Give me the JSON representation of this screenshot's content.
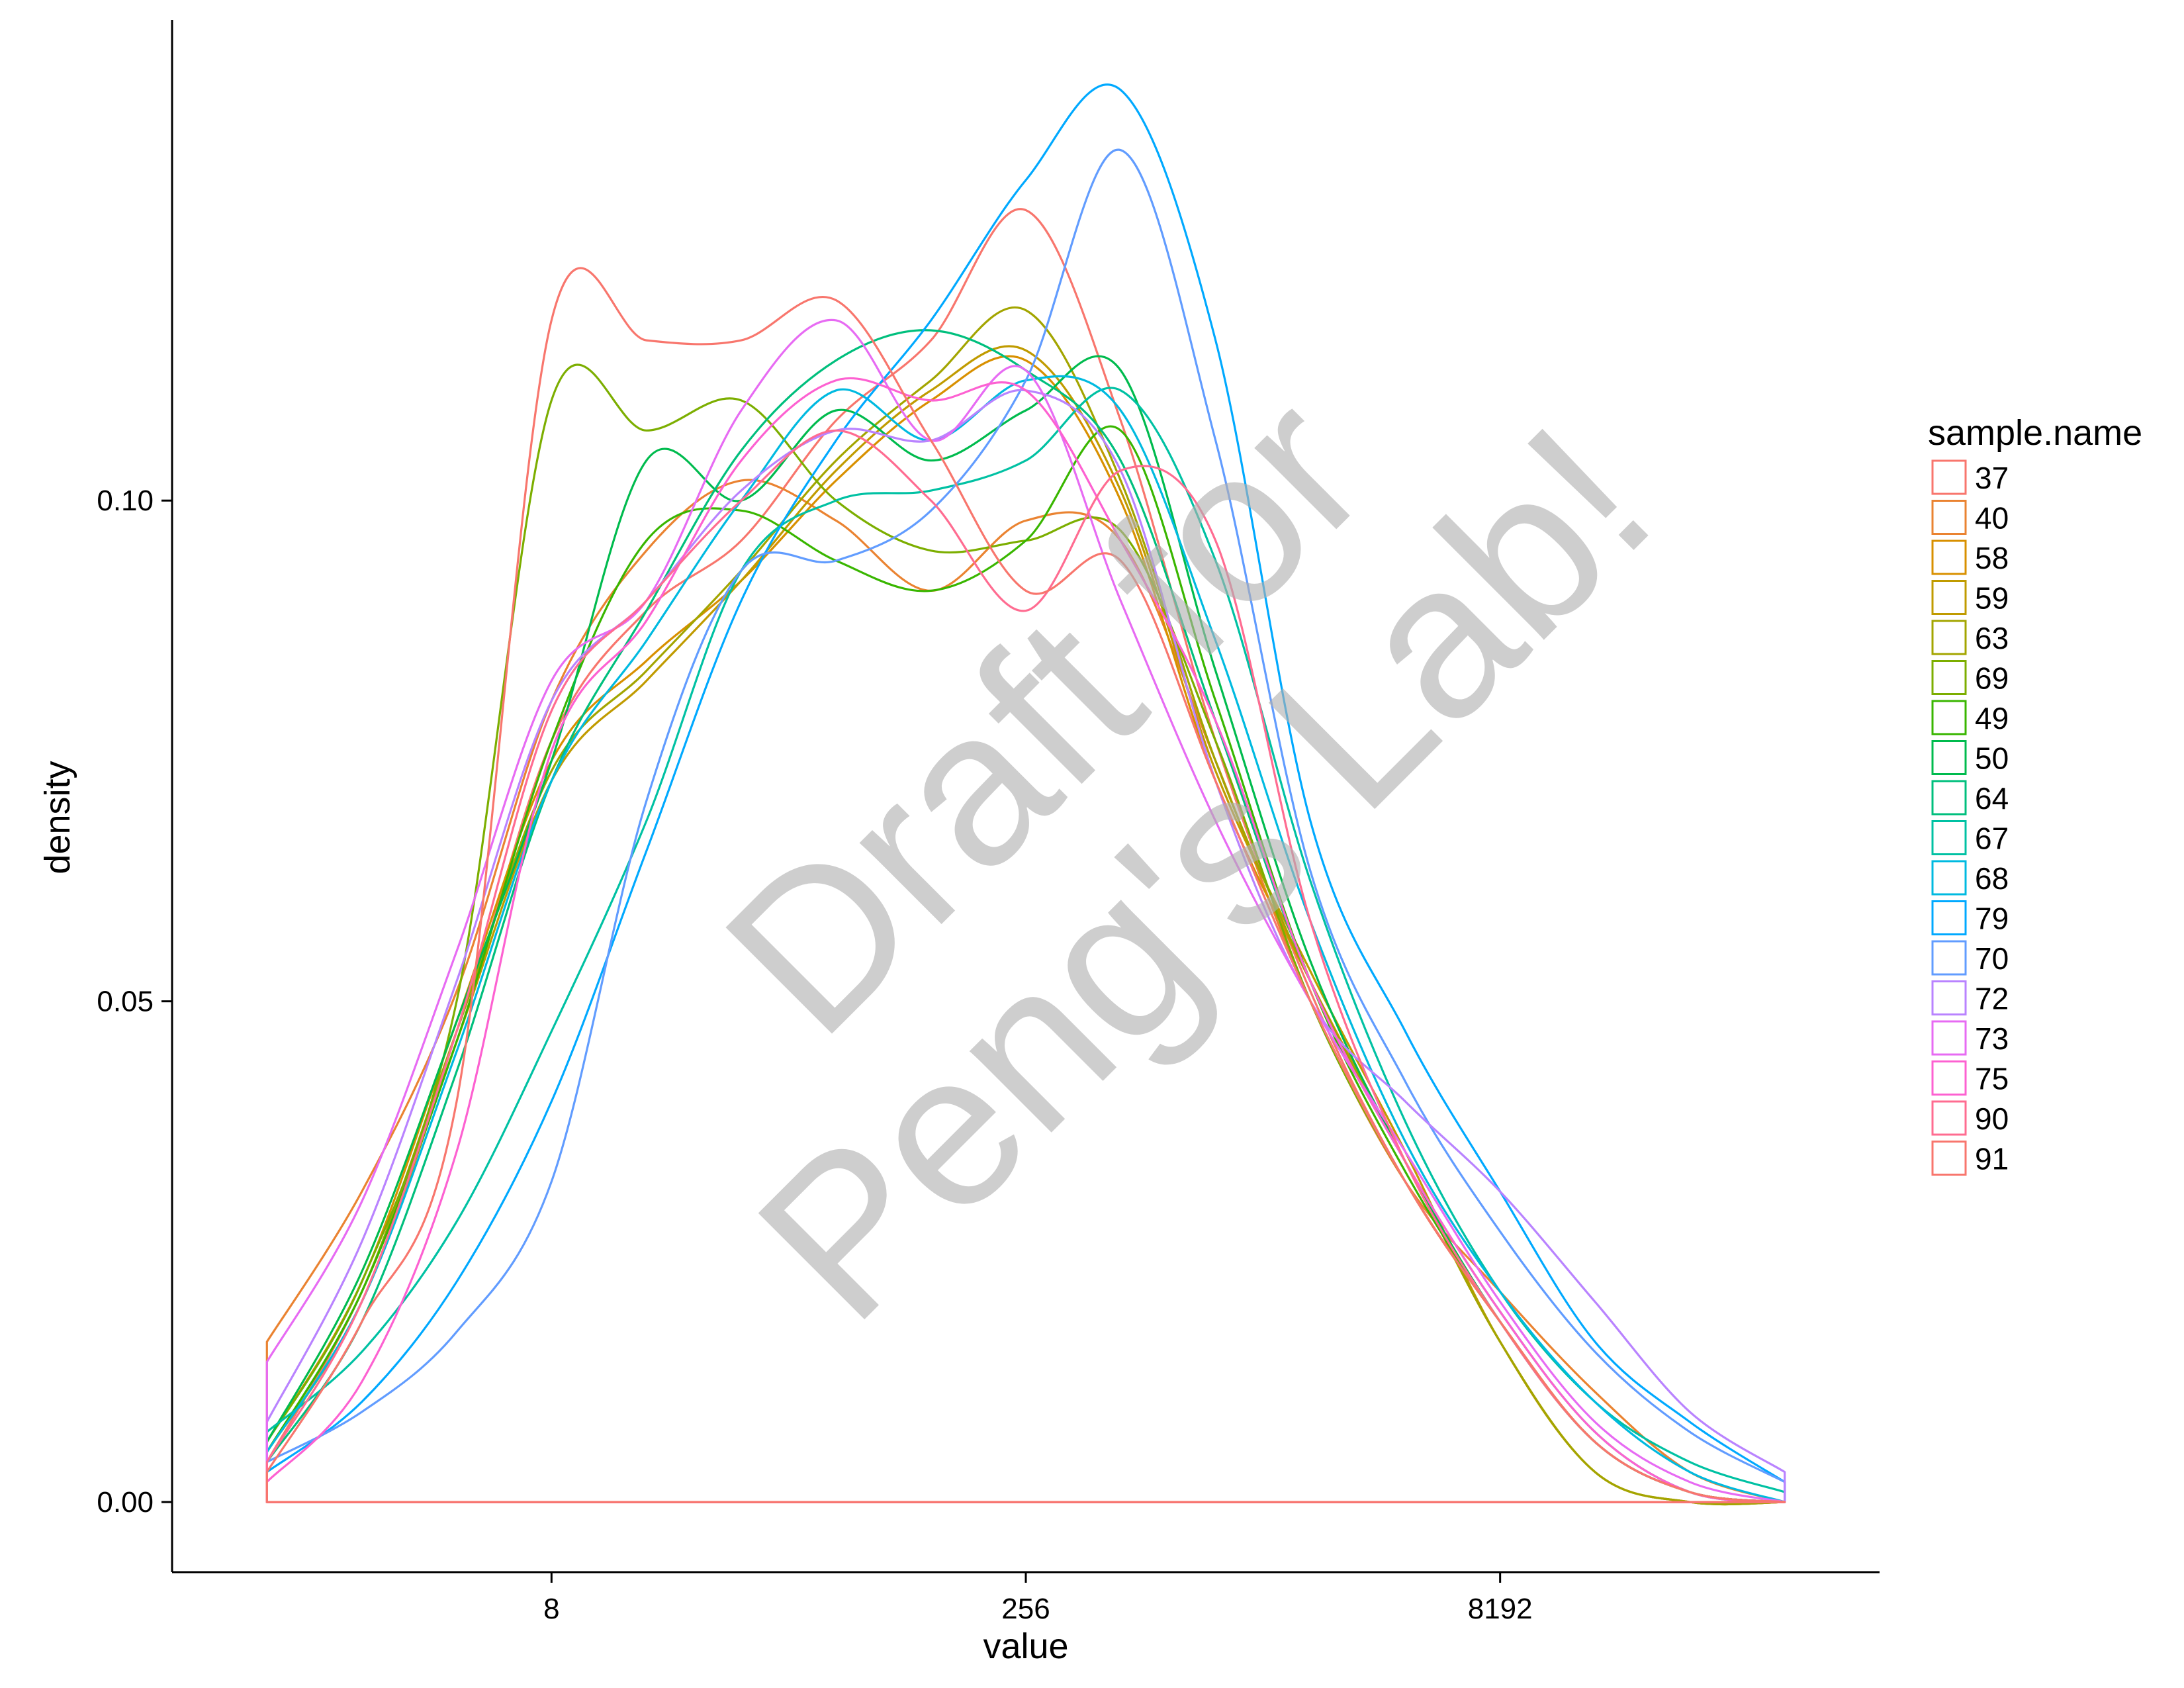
{
  "watermark": {
    "line1": "Draft for",
    "line2": "Peng's Lab!"
  },
  "chart_data": {
    "type": "area",
    "subtype": "density",
    "title": "",
    "xlabel": "value",
    "ylabel": "density",
    "x_scale": "log2",
    "xlim": [
      0.5,
      131072
    ],
    "ylim": [
      -0.007,
      0.148
    ],
    "x_ticks": [
      8,
      256,
      8192
    ],
    "x_tick_labels": [
      "8",
      "256",
      "8192"
    ],
    "y_ticks": [
      0.0,
      0.05,
      0.1
    ],
    "y_tick_labels": [
      "0.00",
      "0.05",
      "0.10"
    ],
    "grid": false,
    "fill": "none",
    "legend": {
      "title": "sample.name",
      "position": "right"
    },
    "series": [
      {
        "name": "37",
        "color": "#F8766D",
        "x": [
          1,
          2,
          4,
          8,
          16,
          32,
          64,
          128,
          256,
          512,
          1024,
          2048,
          4096,
          8192,
          16384,
          32768,
          65536
        ],
        "y": [
          0.004,
          0.021,
          0.046,
          0.076,
          0.089,
          0.096,
          0.108,
          0.116,
          0.129,
          0.108,
          0.076,
          0.051,
          0.032,
          0.018,
          0.006,
          0.001,
          0.0
        ]
      },
      {
        "name": "40",
        "color": "#EA8331",
        "x": [
          1,
          2,
          4,
          8,
          16,
          32,
          64,
          128,
          256,
          512,
          1024,
          2048,
          4096,
          8192,
          16384,
          32768,
          65536
        ],
        "y": [
          0.016,
          0.031,
          0.051,
          0.08,
          0.095,
          0.102,
          0.098,
          0.091,
          0.098,
          0.096,
          0.074,
          0.05,
          0.032,
          0.021,
          0.011,
          0.003,
          0.0
        ]
      },
      {
        "name": "58",
        "color": "#D89000",
        "x": [
          1,
          2,
          4,
          8,
          16,
          32,
          64,
          128,
          256,
          512,
          1024,
          2048,
          4096,
          8192,
          16384,
          32768,
          65536
        ],
        "y": [
          0.006,
          0.022,
          0.048,
          0.074,
          0.084,
          0.092,
          0.102,
          0.11,
          0.114,
          0.1,
          0.072,
          0.052,
          0.034,
          0.016,
          0.003,
          0.0,
          0.0
        ]
      },
      {
        "name": "59",
        "color": "#C09B00",
        "x": [
          1,
          2,
          4,
          8,
          16,
          32,
          64,
          128,
          256,
          512,
          1024,
          2048,
          4096,
          8192,
          16384,
          32768,
          65536
        ],
        "y": [
          0.005,
          0.02,
          0.046,
          0.072,
          0.082,
          0.092,
          0.103,
          0.111,
          0.115,
          0.101,
          0.073,
          0.053,
          0.035,
          0.016,
          0.003,
          0.0,
          0.0
        ]
      },
      {
        "name": "63",
        "color": "#A3A500",
        "x": [
          1,
          2,
          4,
          8,
          16,
          32,
          64,
          128,
          256,
          512,
          1024,
          2048,
          4096,
          8192,
          16384,
          32768,
          65536
        ],
        "y": [
          0.005,
          0.021,
          0.047,
          0.073,
          0.083,
          0.093,
          0.104,
          0.112,
          0.119,
          0.102,
          0.074,
          0.052,
          0.034,
          0.016,
          0.003,
          0.0,
          0.0
        ]
      },
      {
        "name": "69",
        "color": "#7CAE00",
        "x": [
          1,
          2,
          4,
          8,
          16,
          32,
          64,
          128,
          256,
          512,
          1024,
          2048,
          4096,
          8192,
          16384,
          32768,
          65536
        ],
        "y": [
          0.006,
          0.022,
          0.05,
          0.11,
          0.107,
          0.11,
          0.1,
          0.095,
          0.096,
          0.097,
          0.076,
          0.05,
          0.032,
          0.018,
          0.006,
          0.001,
          0.0
        ]
      },
      {
        "name": "49",
        "color": "#39B600",
        "x": [
          1,
          2,
          4,
          8,
          16,
          32,
          64,
          128,
          256,
          512,
          1024,
          2048,
          4096,
          8192,
          16384,
          32768,
          65536
        ],
        "y": [
          0.005,
          0.021,
          0.046,
          0.076,
          0.096,
          0.099,
          0.094,
          0.091,
          0.096,
          0.107,
          0.08,
          0.052,
          0.033,
          0.018,
          0.006,
          0.001,
          0.0
        ]
      },
      {
        "name": "50",
        "color": "#00BB4E",
        "x": [
          1,
          2,
          4,
          8,
          16,
          32,
          64,
          128,
          256,
          512,
          1024,
          2048,
          4096,
          8192,
          16384,
          32768,
          65536
        ],
        "y": [
          0.006,
          0.023,
          0.048,
          0.074,
          0.104,
          0.1,
          0.109,
          0.104,
          0.109,
          0.113,
          0.083,
          0.054,
          0.034,
          0.018,
          0.006,
          0.001,
          0.0
        ]
      },
      {
        "name": "64",
        "color": "#00BF7D",
        "x": [
          1,
          2,
          4,
          8,
          16,
          32,
          64,
          128,
          256,
          512,
          1024,
          2048,
          4096,
          8192,
          16384,
          32768,
          65536
        ],
        "y": [
          0.004,
          0.018,
          0.043,
          0.072,
          0.089,
          0.105,
          0.114,
          0.117,
          0.113,
          0.104,
          0.078,
          0.052,
          0.034,
          0.019,
          0.007,
          0.001,
          0.0
        ]
      },
      {
        "name": "67",
        "color": "#00C1A3",
        "x": [
          1,
          2,
          4,
          8,
          16,
          32,
          64,
          128,
          256,
          512,
          1024,
          2048,
          4096,
          8192,
          16384,
          32768,
          65536
        ],
        "y": [
          0.007,
          0.015,
          0.028,
          0.047,
          0.068,
          0.093,
          0.1,
          0.101,
          0.104,
          0.111,
          0.094,
          0.062,
          0.038,
          0.021,
          0.01,
          0.004,
          0.001
        ]
      },
      {
        "name": "68",
        "color": "#00BAE0",
        "x": [
          1,
          2,
          4,
          8,
          16,
          32,
          64,
          128,
          256,
          512,
          1024,
          2048,
          4096,
          8192,
          16384,
          32768,
          65536
        ],
        "y": [
          0.005,
          0.02,
          0.045,
          0.072,
          0.086,
          0.1,
          0.111,
          0.106,
          0.112,
          0.109,
          0.086,
          0.058,
          0.036,
          0.021,
          0.01,
          0.003,
          0.0
        ]
      },
      {
        "name": "79",
        "color": "#00A9FF",
        "x": [
          1,
          2,
          4,
          8,
          16,
          32,
          64,
          128,
          256,
          512,
          1024,
          2048,
          4096,
          8192,
          16384,
          32768,
          65536
        ],
        "y": [
          0.003,
          0.01,
          0.022,
          0.04,
          0.065,
          0.09,
          0.106,
          0.118,
          0.132,
          0.141,
          0.116,
          0.068,
          0.047,
          0.031,
          0.016,
          0.008,
          0.002
        ]
      },
      {
        "name": "70",
        "color": "#619CFF",
        "x": [
          1,
          2,
          4,
          8,
          16,
          32,
          64,
          128,
          256,
          512,
          1024,
          2048,
          4096,
          8192,
          16384,
          32768,
          65536
        ],
        "y": [
          0.004,
          0.009,
          0.017,
          0.032,
          0.07,
          0.093,
          0.094,
          0.099,
          0.112,
          0.135,
          0.106,
          0.063,
          0.042,
          0.027,
          0.015,
          0.007,
          0.002
        ]
      },
      {
        "name": "72",
        "color": "#B983FF",
        "x": [
          1,
          2,
          4,
          8,
          16,
          32,
          64,
          128,
          256,
          512,
          1024,
          2048,
          4096,
          8192,
          16384,
          32768,
          65536
        ],
        "y": [
          0.008,
          0.026,
          0.052,
          0.08,
          0.09,
          0.101,
          0.107,
          0.106,
          0.111,
          0.103,
          0.072,
          0.05,
          0.04,
          0.031,
          0.02,
          0.009,
          0.003
        ]
      },
      {
        "name": "73",
        "color": "#E76BF3",
        "x": [
          1,
          2,
          4,
          8,
          16,
          32,
          64,
          128,
          256,
          512,
          1024,
          2048,
          4096,
          8192,
          16384,
          32768,
          65536
        ],
        "y": [
          0.014,
          0.03,
          0.055,
          0.082,
          0.09,
          0.109,
          0.118,
          0.106,
          0.113,
          0.09,
          0.068,
          0.05,
          0.035,
          0.02,
          0.008,
          0.002,
          0.0
        ]
      },
      {
        "name": "75",
        "color": "#FD61D1",
        "x": [
          1,
          2,
          4,
          8,
          16,
          32,
          64,
          128,
          256,
          512,
          1024,
          2048,
          4096,
          8192,
          16384,
          32768,
          65536
        ],
        "y": [
          0.002,
          0.012,
          0.035,
          0.075,
          0.088,
          0.104,
          0.112,
          0.11,
          0.111,
          0.096,
          0.078,
          0.052,
          0.034,
          0.019,
          0.007,
          0.001,
          0.0
        ]
      },
      {
        "name": "90",
        "color": "#FF6C91",
        "x": [
          1,
          2,
          4,
          8,
          16,
          32,
          64,
          128,
          256,
          512,
          1024,
          2048,
          4096,
          8192,
          16384,
          32768,
          65536
        ],
        "y": [
          0.004,
          0.02,
          0.047,
          0.079,
          0.09,
          0.1,
          0.107,
          0.1,
          0.089,
          0.103,
          0.096,
          0.058,
          0.034,
          0.018,
          0.006,
          0.001,
          0.0
        ]
      },
      {
        "name": "91",
        "color": "#F8766D",
        "x": [
          1,
          2,
          4,
          8,
          16,
          32,
          64,
          128,
          256,
          512,
          1024,
          2048,
          4096,
          8192,
          16384,
          32768,
          65536
        ],
        "y": [
          0.003,
          0.018,
          0.04,
          0.118,
          0.116,
          0.116,
          0.12,
          0.106,
          0.091,
          0.094,
          0.072,
          0.05,
          0.032,
          0.018,
          0.006,
          0.001,
          0.0
        ]
      }
    ]
  }
}
